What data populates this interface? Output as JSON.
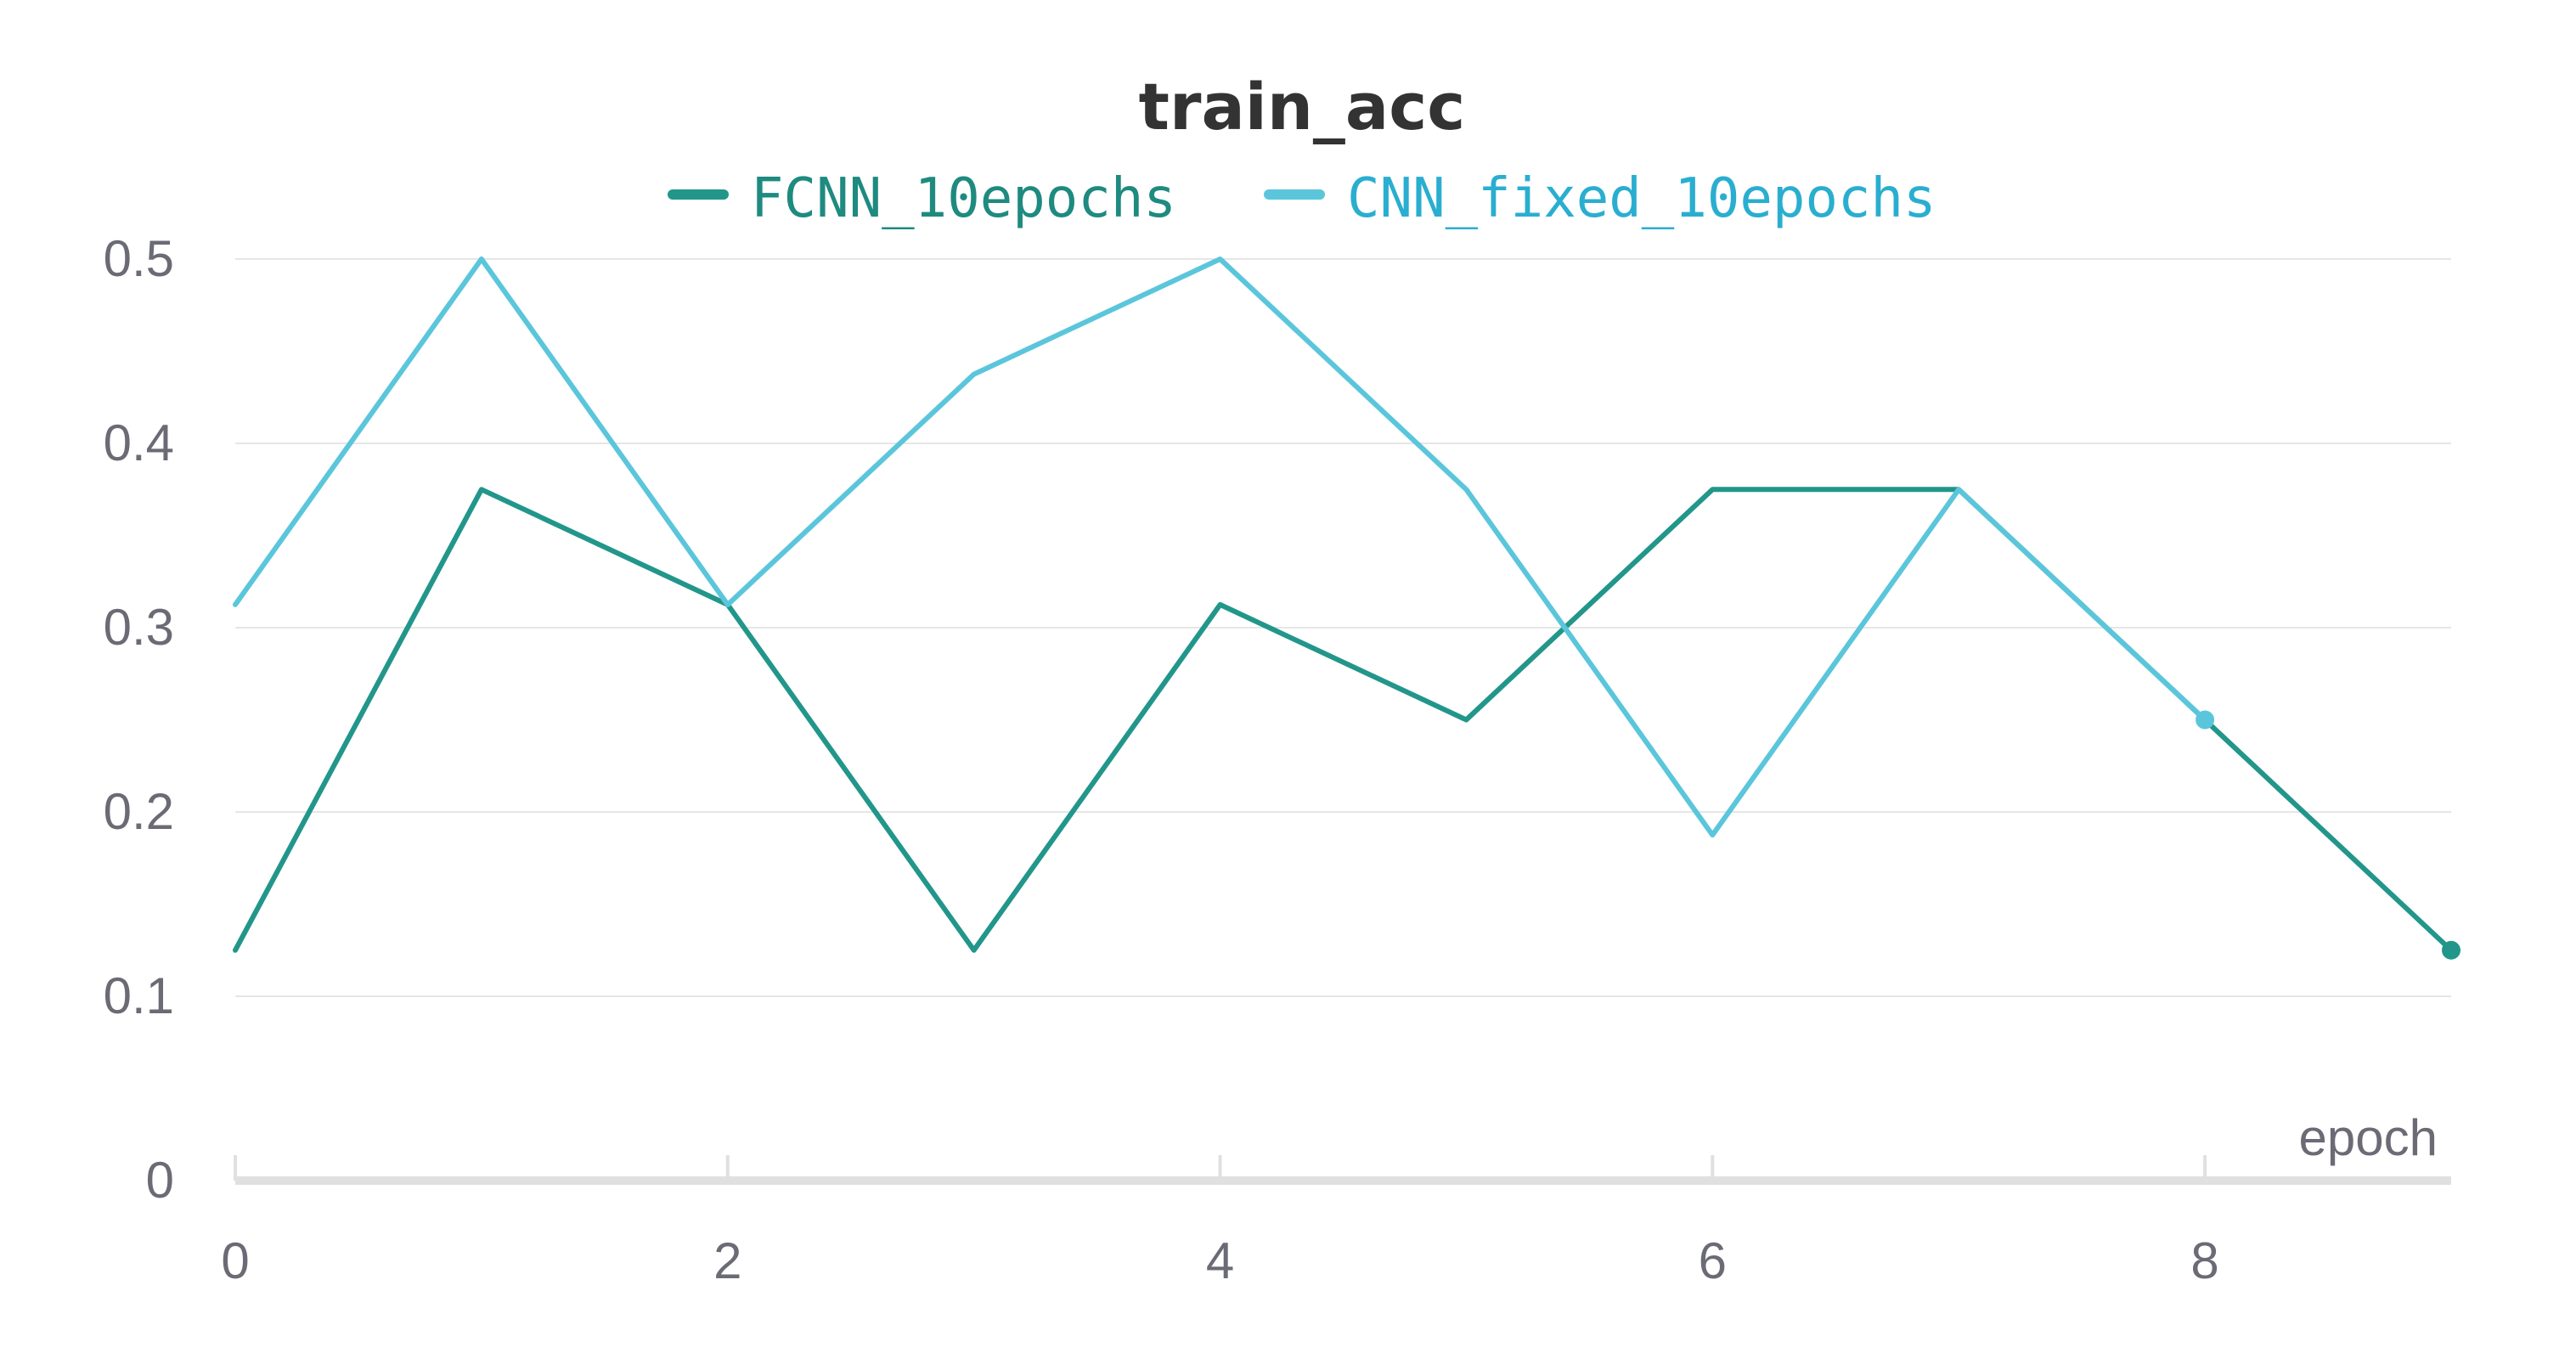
{
  "chart_data": {
    "type": "line",
    "title": "train_acc",
    "xlabel": "epoch",
    "ylabel": "",
    "x": [
      0,
      1,
      2,
      3,
      4,
      5,
      6,
      7,
      8,
      9
    ],
    "xlim": [
      0,
      9
    ],
    "ylim": [
      0,
      0.5
    ],
    "xticks": [
      0,
      2,
      4,
      6,
      8
    ],
    "xtick_labels": [
      "0",
      "2",
      "4",
      "6",
      "8"
    ],
    "yticks": [
      0,
      0.1,
      0.2,
      0.3,
      0.4,
      0.5
    ],
    "ytick_labels": [
      "0",
      "0.1",
      "0.2",
      "0.3",
      "0.4",
      "0.5"
    ],
    "grid": true,
    "legend_position": "top-center",
    "series": [
      {
        "name": "FCNN_10epochs",
        "color": "#22968a",
        "x": [
          0,
          1,
          2,
          3,
          4,
          5,
          6,
          7,
          8,
          9
        ],
        "values": [
          0.125,
          0.375,
          0.3125,
          0.125,
          0.3125,
          0.25,
          0.375,
          0.375,
          0.25,
          0.125
        ]
      },
      {
        "name": "CNN_fixed_10epochs",
        "color": "#5bc6db",
        "x": [
          0,
          1,
          2,
          3,
          4,
          5,
          6,
          7,
          8
        ],
        "values": [
          0.3125,
          0.5,
          0.3125,
          0.4375,
          0.5,
          0.375,
          0.1875,
          0.375,
          0.25
        ]
      }
    ]
  }
}
